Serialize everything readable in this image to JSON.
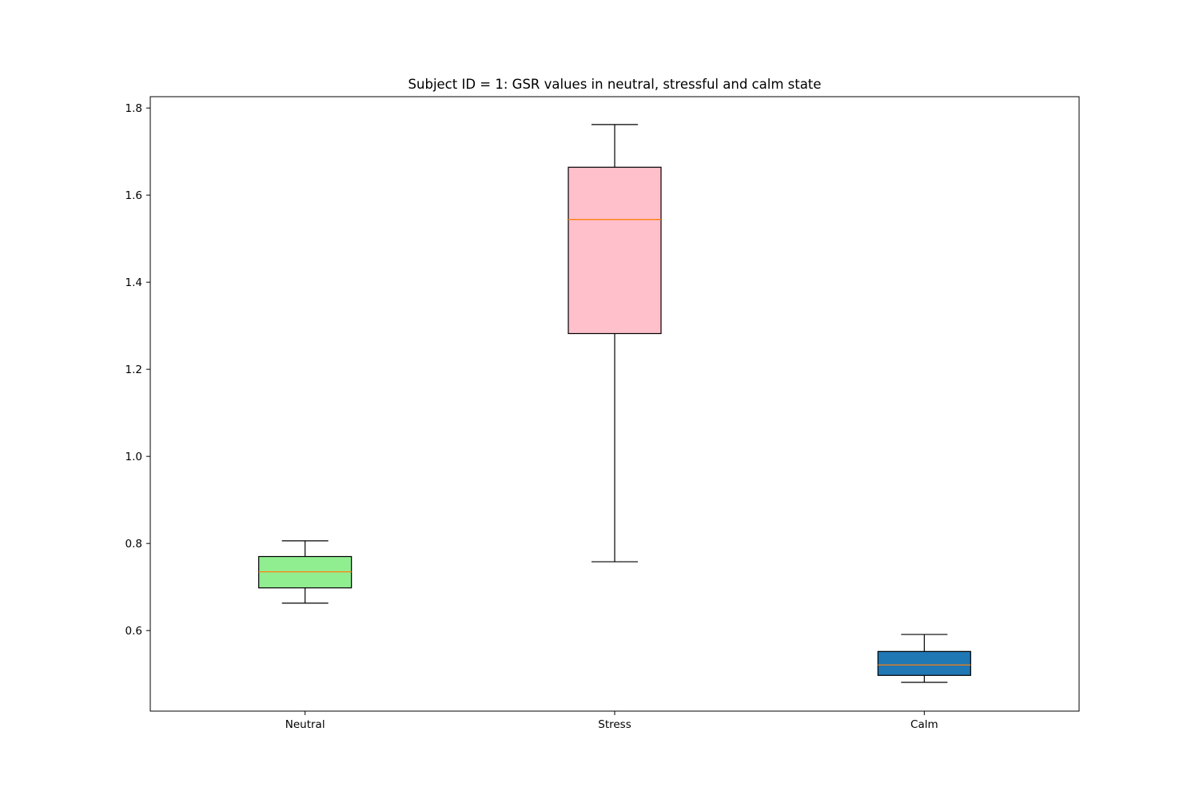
{
  "chart_data": {
    "type": "boxplot",
    "title": "Subject ID = 1: GSR values in  neutral, stressful and calm state",
    "xlabel": "",
    "ylabel": "",
    "ylim": [
      0.415,
      1.826
    ],
    "yticks": [
      0.6,
      0.8,
      1.0,
      1.2,
      1.4,
      1.6,
      1.8
    ],
    "ytick_labels": [
      "0.6",
      "0.8",
      "1.0",
      "1.2",
      "1.4",
      "1.6",
      "1.8"
    ],
    "grid": false,
    "categories": [
      "Neutral",
      "Stress",
      "Calm"
    ],
    "boxes": [
      {
        "category": "Neutral",
        "whisker_low": 0.663,
        "q1": 0.698,
        "median": 0.735,
        "q3": 0.77,
        "whisker_high": 0.806,
        "fill": "#90ee90"
      },
      {
        "category": "Stress",
        "whisker_low": 0.758,
        "q1": 1.282,
        "median": 1.544,
        "q3": 1.664,
        "whisker_high": 1.762,
        "fill": "#ffc0cb"
      },
      {
        "category": "Calm",
        "whisker_low": 0.481,
        "q1": 0.497,
        "median": 0.521,
        "q3": 0.552,
        "whisker_high": 0.591,
        "fill": "#1f77b4"
      }
    ],
    "colors": {
      "median_line": "#ff7f0e",
      "box_edge": "#000000",
      "axes_edge": "#000000"
    }
  }
}
